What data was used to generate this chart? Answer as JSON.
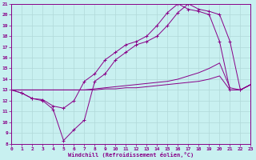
{
  "xlabel": "Windchill (Refroidissement éolien,°C)",
  "bg_color": "#c8f0f0",
  "grid_color": "#b0d8d8",
  "line_color": "#880088",
  "xmin": 0,
  "xmax": 23,
  "ymin": 8,
  "ymax": 21,
  "line1_x": [
    0,
    1,
    2,
    3,
    4,
    5,
    6,
    7,
    8,
    9,
    10,
    11,
    12,
    13,
    14,
    15,
    16,
    17,
    18,
    19,
    20,
    21,
    22,
    23
  ],
  "line1_y": [
    13.0,
    12.7,
    12.2,
    12.1,
    11.5,
    11.3,
    12.0,
    13.8,
    14.5,
    15.8,
    16.5,
    17.2,
    17.5,
    18.0,
    19.0,
    20.2,
    21.0,
    20.5,
    20.3,
    20.0,
    17.5,
    13.0,
    13.0,
    13.5
  ],
  "line2_x": [
    0,
    1,
    2,
    3,
    4,
    5,
    6,
    7,
    8,
    9,
    10,
    11,
    12,
    13,
    14,
    15,
    16,
    17,
    18,
    19,
    20,
    21,
    22,
    23
  ],
  "line2_y": [
    13.0,
    12.7,
    12.2,
    12.0,
    11.2,
    8.3,
    9.3,
    10.2,
    13.8,
    14.5,
    15.8,
    16.5,
    17.2,
    17.5,
    18.0,
    19.0,
    20.2,
    21.0,
    20.5,
    20.3,
    20.0,
    17.5,
    13.0,
    13.5
  ],
  "line3_x": [
    0,
    1,
    2,
    3,
    4,
    5,
    6,
    7,
    8,
    9,
    10,
    11,
    12,
    13,
    14,
    15,
    16,
    17,
    18,
    19,
    20,
    21,
    22,
    23
  ],
  "line3_y": [
    13.0,
    13.0,
    13.0,
    13.0,
    13.0,
    13.0,
    13.0,
    13.0,
    13.1,
    13.2,
    13.3,
    13.4,
    13.5,
    13.6,
    13.7,
    13.8,
    14.0,
    14.3,
    14.6,
    15.0,
    15.5,
    13.2,
    13.0,
    13.5
  ],
  "line4_x": [
    0,
    1,
    2,
    3,
    4,
    5,
    6,
    7,
    8,
    9,
    10,
    11,
    12,
    13,
    14,
    15,
    16,
    17,
    18,
    19,
    20,
    21,
    22,
    23
  ],
  "line4_y": [
    13.0,
    13.0,
    13.0,
    13.0,
    13.0,
    13.0,
    13.0,
    13.0,
    13.0,
    13.1,
    13.1,
    13.2,
    13.2,
    13.3,
    13.4,
    13.5,
    13.6,
    13.7,
    13.8,
    14.0,
    14.3,
    13.0,
    13.0,
    13.5
  ],
  "label_fontsize": 4.5,
  "xlabel_fontsize": 5.0
}
